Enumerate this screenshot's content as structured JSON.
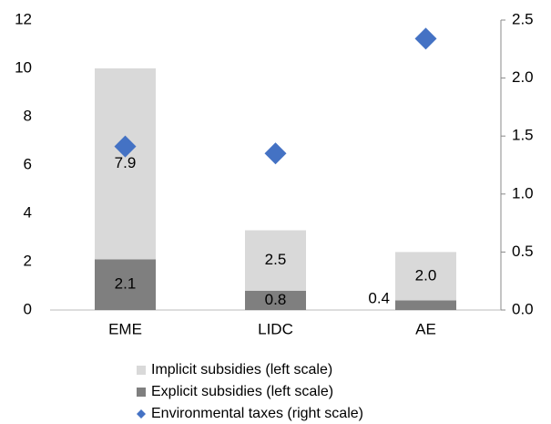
{
  "chart_data": {
    "type": "bar",
    "stacked": true,
    "categories": [
      "EME",
      "LIDC",
      "AE"
    ],
    "series": [
      {
        "name": "Explicit subsidies (left scale)",
        "color": "#7f7f7f",
        "values": [
          2.1,
          0.8,
          0.4
        ]
      },
      {
        "name": "Implicit subsidies (left scale)",
        "color": "#d9d9d9",
        "values": [
          7.9,
          2.5,
          2.0
        ],
        "value_labels": [
          "7.9",
          "2.5",
          "2.0"
        ]
      },
      {
        "name": "Environmental taxes (right scale)",
        "color": "#4472c4",
        "type": "scatter",
        "marker": "diamond",
        "axis": "y2",
        "values": [
          1.41,
          1.35,
          2.34
        ]
      }
    ],
    "legend_order": [
      1,
      0,
      2
    ],
    "ylim": [
      0,
      12
    ],
    "yticks": [
      0,
      2,
      4,
      6,
      8,
      10,
      12
    ],
    "y2lim": [
      0,
      2.5
    ],
    "y2ticks": [
      {
        "value": 0,
        "label": "0.0"
      },
      0.5,
      {
        "value": 1,
        "label": "1.0"
      },
      1.5,
      {
        "value": 2,
        "label": "2.0"
      },
      2.5
    ],
    "grid": false
  }
}
